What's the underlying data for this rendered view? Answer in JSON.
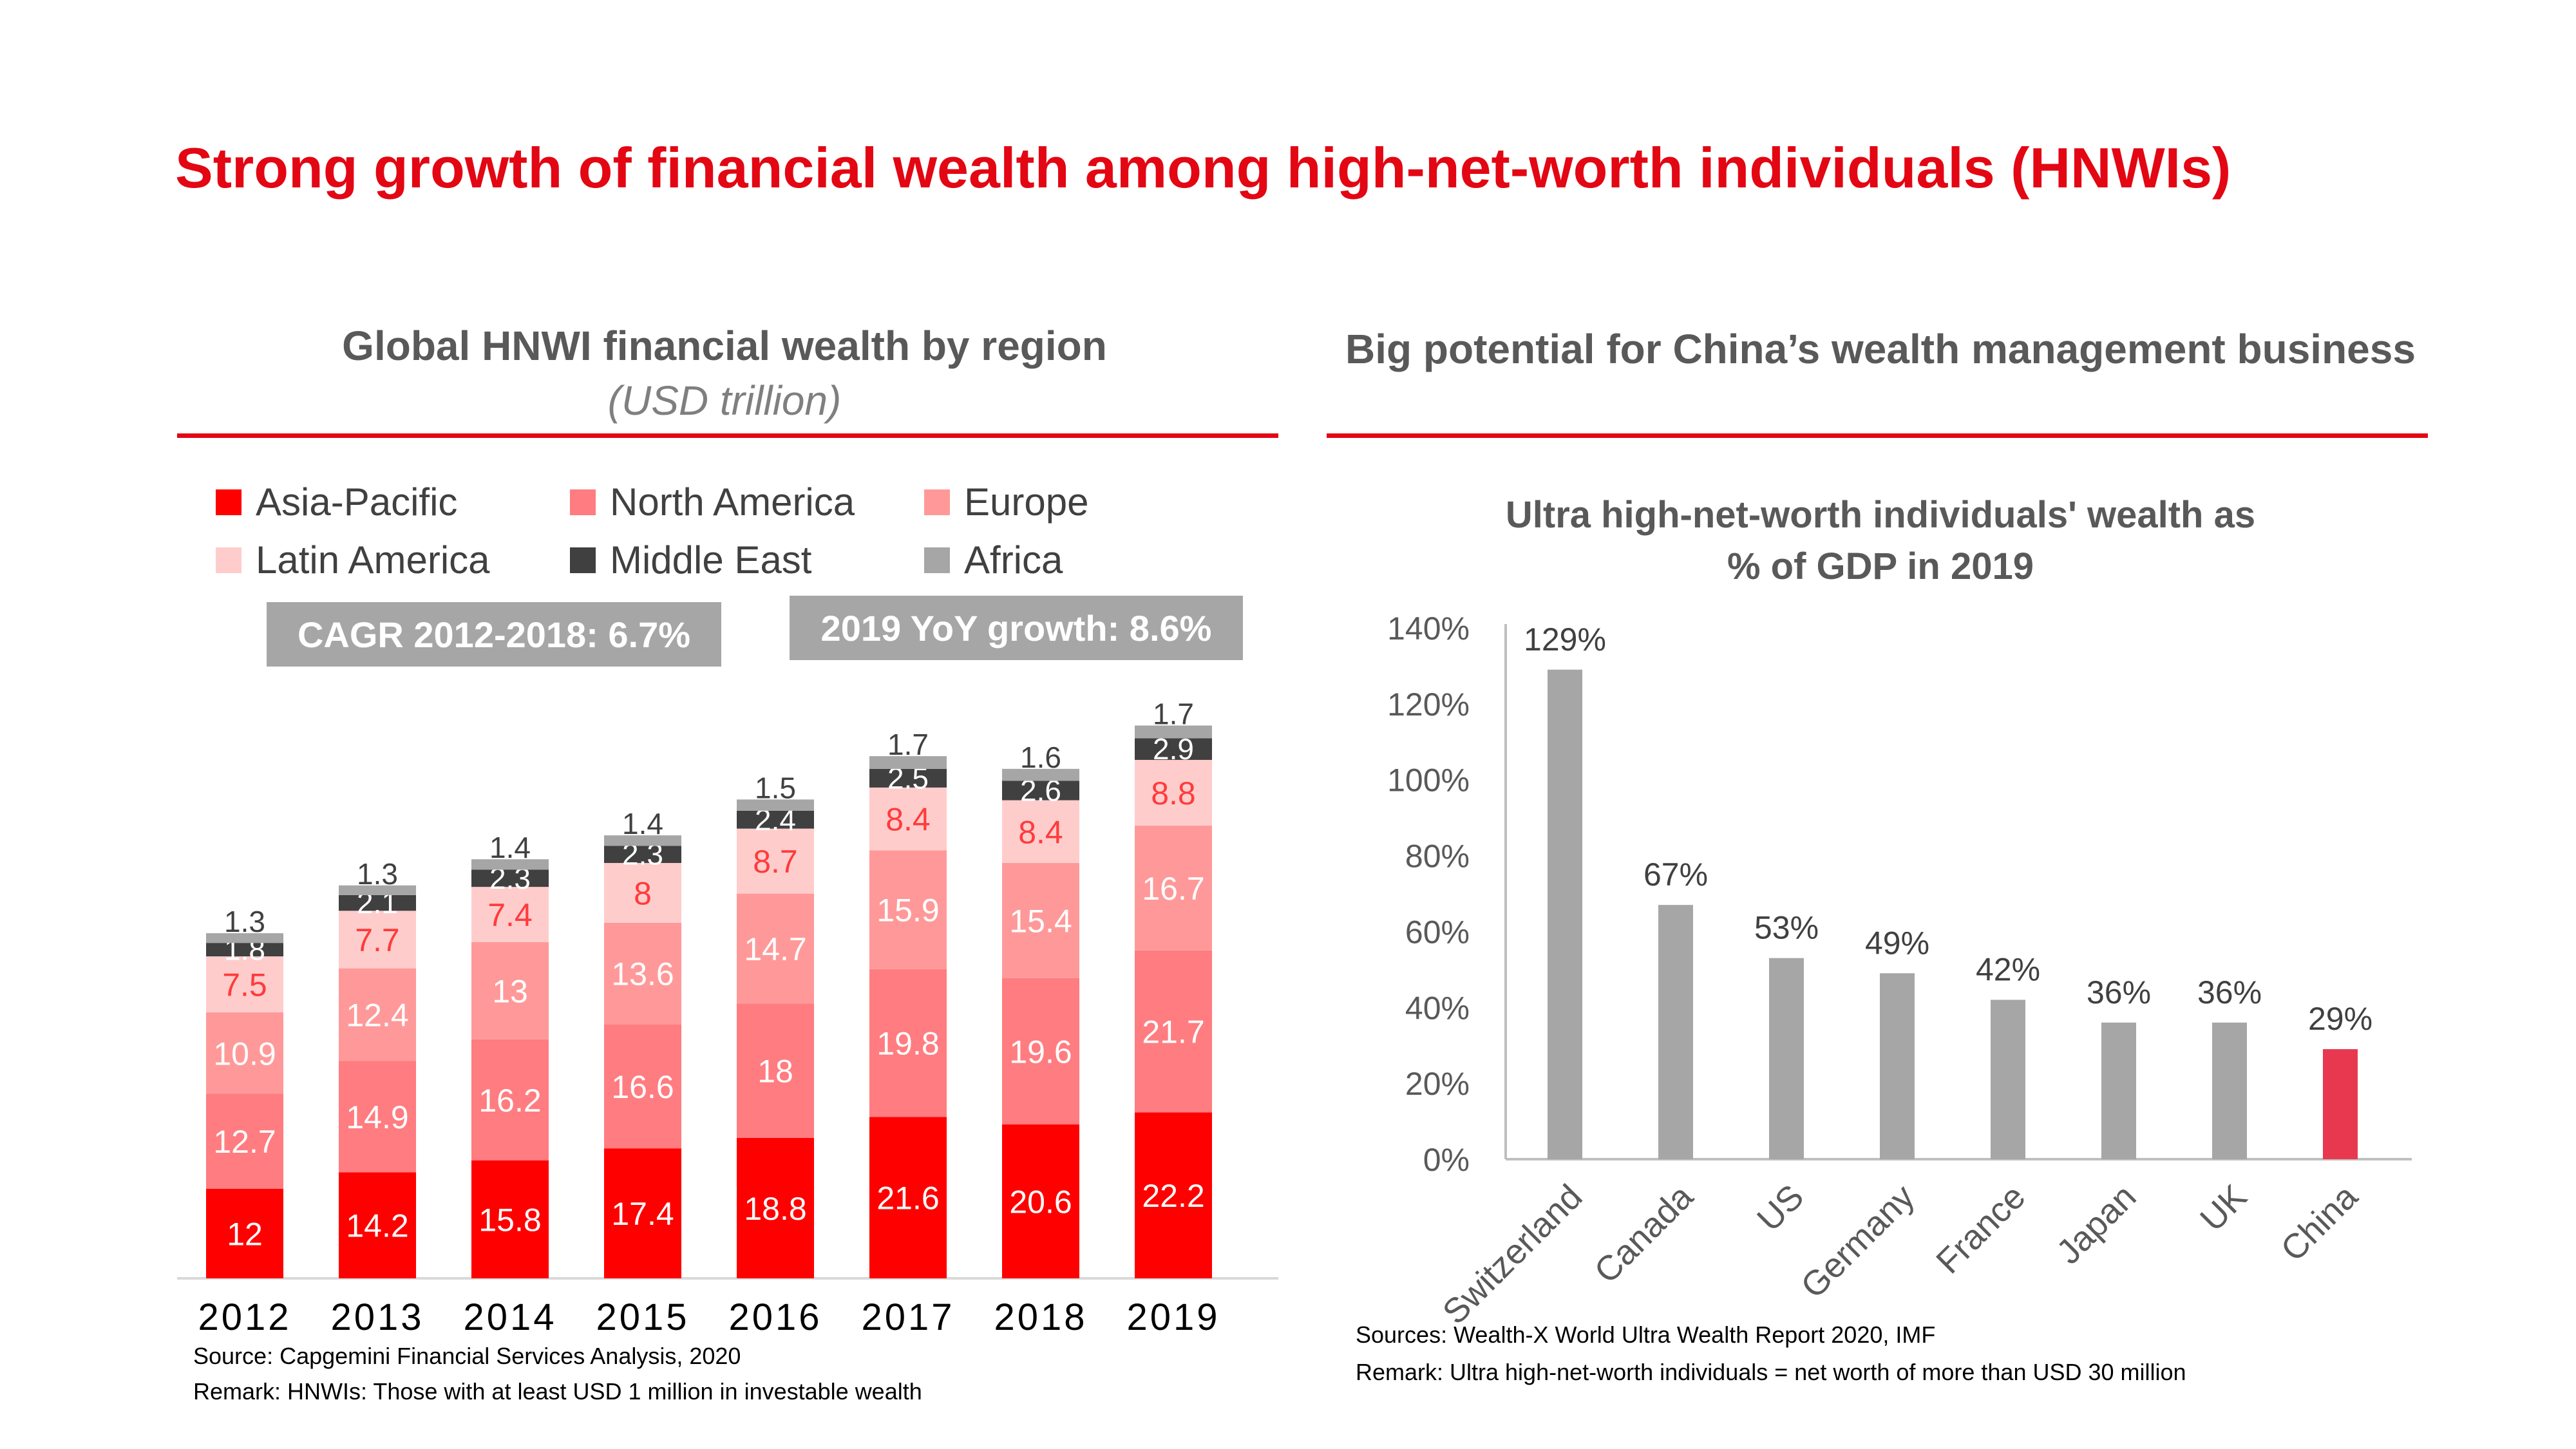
{
  "main_title": "Strong growth of financial wealth among high-net-worth individuals (HNWIs)",
  "left_panel": {
    "title": "Global HNWI financial wealth by region",
    "subtitle": "(USD trillion)",
    "cagr_label": "CAGR 2012-2018: 6.7%",
    "yoy_label": "2019 YoY growth: 8.6%",
    "source": "Source: Capgemini Financial Services Analysis, 2020",
    "remark": "Remark: HNWIs: Those with at least USD 1 million in investable wealth"
  },
  "right_panel": {
    "title": "Big potential for China’s wealth management business",
    "chart_title_line1": "Ultra high-net-worth individuals' wealth as",
    "chart_title_line2": "% of GDP in 2019",
    "source": "Sources: Wealth-X World Ultra Wealth Report 2020, IMF",
    "remark": "Remark: Ultra high-net-worth individuals = net worth of more than USD 30 million"
  },
  "colors": {
    "accent": "#e30613",
    "asia_pacific": "#ff0000",
    "north_america": "#ff7c80",
    "europe": "#ff9999",
    "latin_america": "#ffcccc",
    "middle_east": "#404040",
    "africa": "#a6a6a6",
    "bar_grey": "#a6a6a6",
    "bar_china": "#e8384f"
  },
  "chart_data": [
    {
      "type": "bar",
      "stacked": true,
      "categories": [
        "2012",
        "2013",
        "2014",
        "2015",
        "2016",
        "2017",
        "2018",
        "2019"
      ],
      "series": [
        {
          "name": "Asia-Pacific",
          "values": [
            12,
            14.2,
            15.8,
            17.4,
            18.8,
            21.6,
            20.6,
            22.2
          ]
        },
        {
          "name": "North America",
          "values": [
            12.7,
            14.9,
            16.2,
            16.6,
            18,
            19.8,
            19.6,
            21.7
          ]
        },
        {
          "name": "Europe",
          "values": [
            10.9,
            12.4,
            13,
            13.6,
            14.7,
            15.9,
            15.4,
            16.7
          ]
        },
        {
          "name": "Latin America",
          "values": [
            7.5,
            7.7,
            7.4,
            8,
            8.7,
            8.4,
            8.4,
            8.8
          ]
        },
        {
          "name": "Middle East",
          "values": [
            1.8,
            2.1,
            2.3,
            2.3,
            2.4,
            2.5,
            2.6,
            2.9
          ]
        },
        {
          "name": "Africa",
          "values": [
            1.3,
            1.3,
            1.4,
            1.4,
            1.5,
            1.7,
            1.6,
            1.7
          ]
        }
      ],
      "legend_position": "top",
      "grid": false
    },
    {
      "type": "bar",
      "categories": [
        "Switzerland",
        "Canada",
        "US",
        "Germany",
        "France",
        "Japan",
        "UK",
        "China"
      ],
      "values": [
        129,
        67,
        53,
        49,
        42,
        36,
        36,
        29
      ],
      "data_labels": [
        "129%",
        "67%",
        "53%",
        "49%",
        "42%",
        "36%",
        "36%",
        "29%"
      ],
      "ylim": [
        0,
        140
      ],
      "ytick_labels": [
        "0%",
        "20%",
        "40%",
        "60%",
        "80%",
        "100%",
        "120%",
        "140%"
      ],
      "highlight": "China",
      "grid": false
    }
  ]
}
